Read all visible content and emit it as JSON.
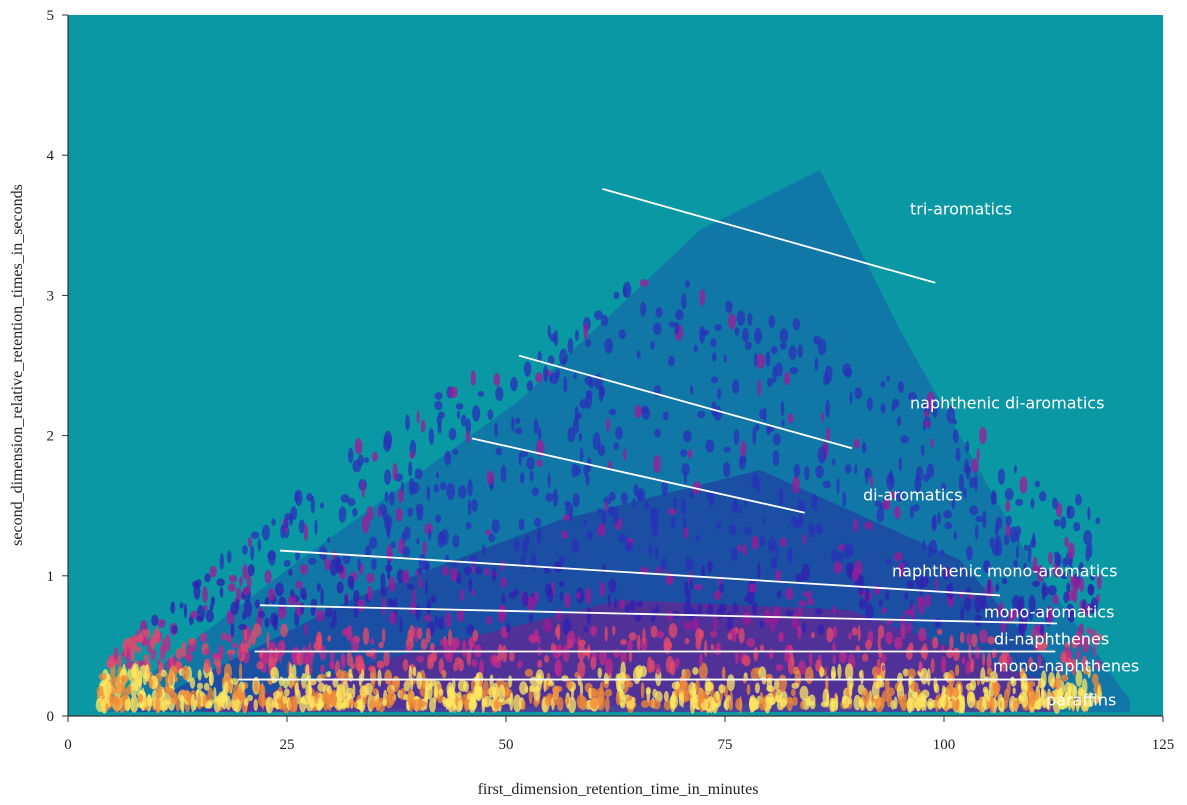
{
  "chart_data": {
    "type": "heatmap",
    "xlabel": "first_dimension_retention_time_in_minutes",
    "ylabel": "second_dimension_relative_retention_times_in_seconds",
    "xlim": [
      0,
      125
    ],
    "ylim": [
      0,
      5
    ],
    "xticks": [
      0,
      25,
      50,
      75,
      100,
      125
    ],
    "yticks": [
      0,
      1,
      2,
      3,
      4,
      5
    ],
    "background": "#0b98a5",
    "boundary_color": "#ffffff",
    "regions": [
      {
        "name": "tri-aromatics",
        "x": [
          61.0,
          99.0
        ],
        "y": [
          3.76,
          3.09
        ]
      },
      {
        "name": "naphthenic di-aromatics",
        "x": [
          51.5,
          89.5
        ],
        "y": [
          2.57,
          1.91
        ]
      },
      {
        "name": "di-aromatics",
        "x": [
          46.1,
          84.1
        ],
        "y": [
          1.98,
          1.45
        ]
      },
      {
        "name": "naphthenic mono-aromatics",
        "x": [
          24.2,
          106.4
        ],
        "y": [
          1.18,
          0.86
        ]
      },
      {
        "name": "mono-aromatics",
        "x": [
          21.9,
          112.9
        ],
        "y": [
          0.79,
          0.66
        ]
      },
      {
        "name": "di-naphthenes",
        "x": [
          21.3,
          112.7
        ],
        "y": [
          0.46,
          0.46
        ]
      },
      {
        "name": "mono-naphthenes",
        "x": [
          19.4,
          111.0
        ],
        "y": [
          0.26,
          0.26
        ]
      },
      {
        "name": "paraffins",
        "x": [],
        "y": []
      }
    ]
  }
}
